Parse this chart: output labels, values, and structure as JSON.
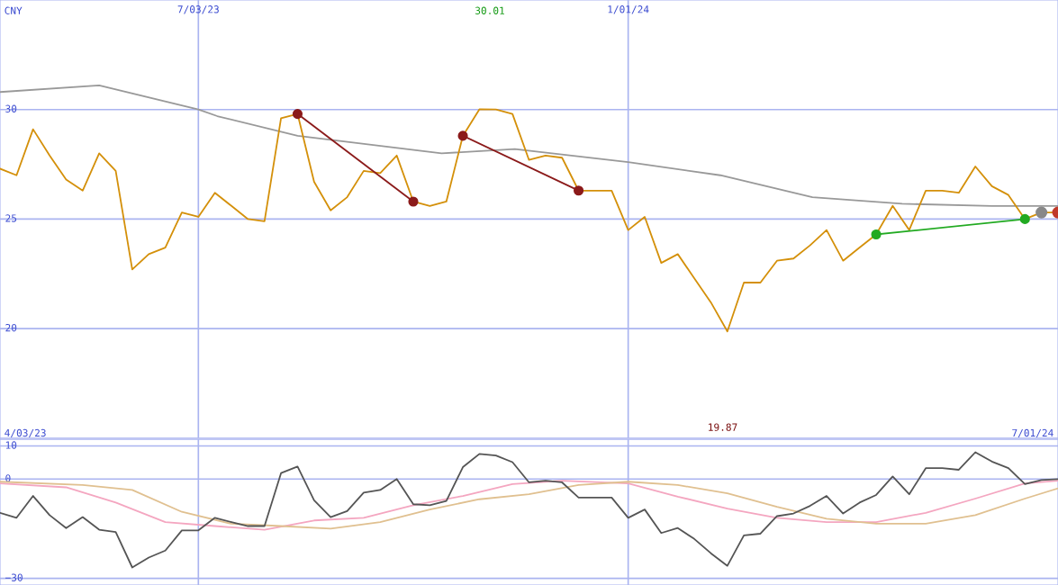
{
  "chart_data": [
    {
      "type": "line",
      "ylabel": "CNY",
      "xlim": [
        "2023-04-10",
        "2024-07-01"
      ],
      "ylim": [
        15,
        35
      ],
      "yticks": [
        20,
        25,
        30
      ],
      "xticks": [
        {
          "value": "2023-07-03",
          "label": "7/03/23"
        },
        {
          "value": "2024-01-01",
          "label": "1/01/24"
        }
      ],
      "grid": true,
      "legend": false,
      "annotations": [
        "30.01",
        "19.87"
      ],
      "x": [
        "2023-04-10",
        "2023-04-17",
        "2023-04-24",
        "2023-05-01",
        "2023-05-08",
        "2023-05-15",
        "2023-05-22",
        "2023-05-29",
        "2023-06-05",
        "2023-06-12",
        "2023-06-19",
        "2023-06-26",
        "2023-07-03",
        "2023-07-10",
        "2023-07-17",
        "2023-07-24",
        "2023-07-31",
        "2023-08-07",
        "2023-08-14",
        "2023-08-21",
        "2023-08-28",
        "2023-09-04",
        "2023-09-11",
        "2023-09-18",
        "2023-09-25",
        "2023-10-02",
        "2023-10-09",
        "2023-10-16",
        "2023-10-23",
        "2023-10-30",
        "2023-11-06",
        "2023-11-13",
        "2023-11-20",
        "2023-11-27",
        "2023-12-04",
        "2023-12-11",
        "2023-12-18",
        "2023-12-25",
        "2024-01-01",
        "2024-01-08",
        "2024-01-15",
        "2024-01-22",
        "2024-01-29",
        "2024-02-05",
        "2024-02-12",
        "2024-02-19",
        "2024-02-26",
        "2024-03-04",
        "2024-03-11",
        "2024-03-18",
        "2024-03-25",
        "2024-04-01",
        "2024-04-08",
        "2024-04-15",
        "2024-04-22",
        "2024-04-29",
        "2024-05-06",
        "2024-05-13",
        "2024-05-20",
        "2024-05-27",
        "2024-06-03",
        "2024-06-10",
        "2024-06-17",
        "2024-06-24",
        "2024-07-01"
      ],
      "series": [
        {
          "color": "#999999",
          "x": [
            "2023-04-10",
            "2023-05-22",
            "2023-07-03",
            "2023-07-11",
            "2023-08-14",
            "2023-10-14",
            "2023-11-14",
            "2024-01-01",
            "2024-02-09",
            "2024-03-19",
            "2024-04-26",
            "2024-06-03",
            "2024-07-01"
          ],
          "values": [
            30.8,
            31.1,
            30.0,
            29.7,
            28.8,
            28.0,
            28.2,
            27.6,
            27.0,
            26.0,
            25.7,
            25.6,
            25.6
          ]
        },
        {
          "color": "#d4900a",
          "values": [
            27.3,
            27.0,
            29.1,
            27.9,
            26.8,
            26.3,
            28.0,
            27.2,
            22.7,
            23.4,
            23.7,
            25.3,
            25.1,
            26.2,
            25.6,
            25.0,
            24.9,
            29.6,
            29.8,
            26.7,
            25.4,
            26.0,
            27.2,
            27.1,
            27.9,
            25.8,
            25.6,
            25.8,
            28.8,
            30.01,
            30.0,
            29.8,
            27.7,
            27.9,
            27.8,
            26.3,
            26.3,
            26.3,
            24.5,
            25.1,
            23.0,
            23.4,
            22.3,
            21.2,
            19.87,
            22.1,
            22.1,
            23.1,
            23.2,
            23.8,
            24.5,
            23.1,
            23.7,
            24.3,
            25.6,
            24.5,
            26.3,
            26.3,
            26.2,
            27.4,
            26.5,
            26.1,
            25.0,
            25.3,
            25.3
          ]
        },
        {
          "color": "#8b1a1a",
          "marker": "circle",
          "x": [
            "2023-08-14",
            "2023-10-02"
          ],
          "values": [
            29.8,
            25.8
          ]
        },
        {
          "color": "#8b1a1a",
          "marker": "circle",
          "x": [
            "2023-10-23",
            "2023-12-11"
          ],
          "values": [
            28.8,
            26.3
          ]
        },
        {
          "color": "#22aa22",
          "marker": "circle",
          "x": [
            "2024-04-15",
            "2024-06-17"
          ],
          "values": [
            24.3,
            25.0
          ]
        },
        {
          "type": "scatter",
          "colors": [
            "#888888",
            "#c0392b"
          ],
          "x": [
            "2024-06-24",
            "2024-07-01"
          ],
          "values": [
            25.3,
            25.3
          ]
        }
      ]
    },
    {
      "type": "line",
      "xlim": [
        "2023-04-10",
        "2024-07-01"
      ],
      "ylim": [
        -32,
        12
      ],
      "yticks": [
        {
          "value": -30,
          "label": "−30"
        },
        0,
        10
      ],
      "xticks": [
        "2023-07-03",
        "2024-01-01"
      ],
      "tick_labels": "y",
      "grid": true,
      "legend": false,
      "annotations": [
        "4/03/23",
        "7/01/24"
      ],
      "series": [
        {
          "color": "#f4a6c0",
          "x": [
            "2023-04-10",
            "2023-05-08",
            "2023-05-29",
            "2023-06-19",
            "2023-07-10",
            "2023-07-31",
            "2023-08-21",
            "2023-09-11",
            "2023-10-02",
            "2023-10-23",
            "2023-11-13",
            "2023-12-04",
            "2024-01-01",
            "2024-01-22",
            "2024-02-12",
            "2024-03-04",
            "2024-03-25",
            "2024-04-15",
            "2024-05-06",
            "2024-05-27",
            "2024-06-17",
            "2024-07-01"
          ],
          "values": [
            -1.3,
            -2.5,
            -7.1,
            -13.0,
            -14.2,
            -15.3,
            -12.5,
            -11.7,
            -7.9,
            -5.1,
            -1.5,
            -0.5,
            -1.3,
            -5.3,
            -8.9,
            -11.7,
            -13.0,
            -13.0,
            -10.2,
            -5.9,
            -1.3,
            -0.5
          ]
        },
        {
          "color": "#e0c090",
          "x": [
            "2023-04-10",
            "2023-05-15",
            "2023-06-05",
            "2023-06-26",
            "2023-07-17",
            "2023-08-07",
            "2023-08-28",
            "2023-09-18",
            "2023-10-09",
            "2023-10-30",
            "2023-11-20",
            "2023-12-11",
            "2024-01-01",
            "2024-01-22",
            "2024-02-12",
            "2024-03-04",
            "2024-03-25",
            "2024-04-15",
            "2024-05-06",
            "2024-05-27",
            "2024-06-17",
            "2024-07-01"
          ],
          "values": [
            -0.8,
            -1.8,
            -3.3,
            -9.9,
            -13.5,
            -14.2,
            -15.0,
            -13.0,
            -9.2,
            -6.1,
            -4.6,
            -1.8,
            -0.8,
            -1.8,
            -4.3,
            -8.4,
            -12.0,
            -13.5,
            -13.5,
            -10.9,
            -5.9,
            -2.8
          ]
        },
        {
          "color": "#555555",
          "x": [
            "2023-04-10",
            "2023-04-17",
            "2023-04-24",
            "2023-05-01",
            "2023-05-08",
            "2023-05-15",
            "2023-05-22",
            "2023-05-29",
            "2023-06-05",
            "2023-06-12",
            "2023-06-19",
            "2023-06-26",
            "2023-07-03",
            "2023-07-10",
            "2023-07-17",
            "2023-07-24",
            "2023-07-31",
            "2023-08-07",
            "2023-08-14",
            "2023-08-21",
            "2023-08-28",
            "2023-09-04",
            "2023-09-11",
            "2023-09-18",
            "2023-09-25",
            "2023-10-02",
            "2023-10-09",
            "2023-10-16",
            "2023-10-23",
            "2023-10-30",
            "2023-11-06",
            "2023-11-13",
            "2023-11-20",
            "2023-11-27",
            "2023-12-04",
            "2023-12-11",
            "2023-12-18",
            "2023-12-25",
            "2024-01-01",
            "2024-01-08",
            "2024-01-15",
            "2024-01-22",
            "2024-01-29",
            "2024-02-05",
            "2024-02-12",
            "2024-02-19",
            "2024-02-26",
            "2024-03-04",
            "2024-03-11",
            "2024-03-18",
            "2024-03-25",
            "2024-04-01",
            "2024-04-08",
            "2024-04-15",
            "2024-04-22",
            "2024-04-29",
            "2024-05-06",
            "2024-05-13",
            "2024-05-20",
            "2024-05-27",
            "2024-06-03",
            "2024-06-10",
            "2024-06-17",
            "2024-06-24",
            "2024-07-01"
          ],
          "values": [
            -10.2,
            -11.7,
            -5.1,
            -10.9,
            -14.8,
            -11.5,
            -15.3,
            -16.0,
            -26.7,
            -23.7,
            -21.6,
            -15.5,
            -15.5,
            -11.7,
            -13.0,
            -14.2,
            -14.2,
            1.8,
            3.8,
            -6.4,
            -11.5,
            -9.7,
            -4.1,
            -3.3,
            0,
            -7.6,
            -7.9,
            -6.6,
            3.6,
            7.6,
            7.1,
            5.1,
            -1.0,
            -0.5,
            -1.0,
            -5.6,
            -5.6,
            -5.6,
            -11.7,
            -9.2,
            -16.3,
            -14.8,
            -18.1,
            -22.4,
            -26.2,
            -17.0,
            -16.5,
            -11.2,
            -10.4,
            -8.1,
            -5.1,
            -10.4,
            -7.1,
            -4.8,
            0.8,
            -4.6,
            3.3,
            3.3,
            2.8,
            8.1,
            5.3,
            3.3,
            -1.5,
            -0.3,
            0
          ]
        }
      ]
    }
  ]
}
